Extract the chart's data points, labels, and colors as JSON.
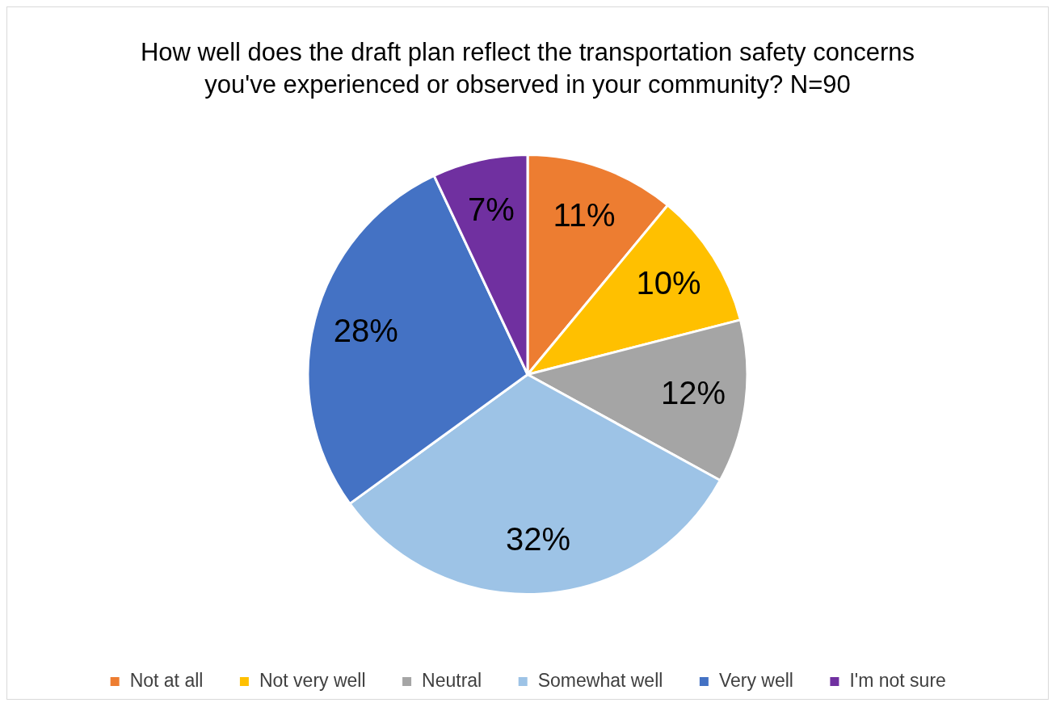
{
  "chart_data": {
    "type": "pie",
    "title": "How well does the draft plan reflect the transportation safety concerns you've experienced or observed in your community? N=90",
    "categories": [
      "Not at all",
      "Not very well",
      "Neutral",
      "Somewhat well",
      "Very well",
      "I'm not sure"
    ],
    "values": [
      11,
      10,
      12,
      32,
      28,
      7
    ],
    "colors": [
      "#ed7d31",
      "#ffc000",
      "#a5a5a5",
      "#9dc3e6",
      "#4472c4",
      "#7030a0"
    ],
    "value_labels": [
      "11%",
      "10%",
      "12%",
      "32%",
      "28%",
      "7%"
    ],
    "legend": "bottom"
  }
}
